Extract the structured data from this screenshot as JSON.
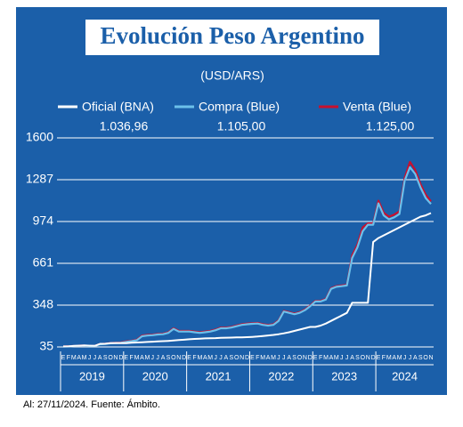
{
  "chart_data": {
    "type": "line",
    "title": "Evolución Peso Argentino",
    "subtitle": "(USD/ARS)",
    "footer": "Al: 27/11/2024. Fuente: Ámbito.",
    "categories": [
      "E",
      "F",
      "M",
      "A",
      "M",
      "J",
      "J",
      "A",
      "S",
      "O",
      "N",
      "D",
      "E",
      "F",
      "M",
      "A",
      "M",
      "J",
      "J",
      "A",
      "S",
      "O",
      "N",
      "D",
      "E",
      "F",
      "M",
      "A",
      "M",
      "J",
      "J",
      "A",
      "S",
      "O",
      "N",
      "D",
      "E",
      "F",
      "M",
      "A",
      "M",
      "J",
      "J",
      "A",
      "S",
      "O",
      "N",
      "D",
      "E",
      "F",
      "M",
      "A",
      "M",
      "J",
      "J",
      "A",
      "S",
      "O",
      "N",
      "D",
      "E",
      "F",
      "M",
      "A",
      "M",
      "J",
      "J",
      "A",
      "S",
      "O",
      "N"
    ],
    "years": [
      "2019",
      "2020",
      "2021",
      "2022",
      "2023",
      "2024"
    ],
    "ylim": [
      35,
      1600
    ],
    "yticks": [
      35,
      348,
      661,
      974,
      1287,
      1600
    ],
    "grid": true,
    "series": [
      {
        "name": "Oficial (BNA)",
        "color": "#ffffff",
        "last_value_label": "1.036,96",
        "values": [
          39,
          39,
          42,
          44,
          46,
          44,
          43,
          58,
          59,
          63,
          63,
          63,
          63,
          66,
          68,
          70,
          72,
          74,
          76,
          78,
          80,
          83,
          86,
          89,
          92,
          95,
          97,
          99,
          100,
          101,
          103,
          104,
          105,
          106,
          107,
          108,
          110,
          113,
          117,
          121,
          125,
          130,
          137,
          145,
          155,
          165,
          175,
          185,
          185,
          195,
          210,
          230,
          250,
          270,
          290,
          365,
          365,
          365,
          365,
          820,
          850,
          870,
          890,
          910,
          930,
          950,
          970,
          990,
          1010,
          1020,
          1036.96
        ]
      },
      {
        "name": "Compra (Blue)",
        "color": "#6cc0ea",
        "last_value_label": "1.105,00",
        "values": [
          37,
          39,
          42,
          44,
          44,
          42,
          42,
          55,
          57,
          62,
          65,
          66,
          73,
          78,
          85,
          115,
          120,
          123,
          128,
          130,
          140,
          170,
          150,
          150,
          150,
          145,
          140,
          145,
          150,
          160,
          175,
          175,
          180,
          190,
          200,
          205,
          208,
          210,
          200,
          195,
          200,
          230,
          300,
          290,
          280,
          290,
          310,
          340,
          375,
          375,
          390,
          470,
          485,
          490,
          495,
          700,
          780,
          900,
          950,
          950,
          1110,
          1020,
          990,
          1005,
          1030,
          1280,
          1380,
          1330,
          1230,
          1150,
          1105
        ]
      },
      {
        "name": "Venta (Blue)",
        "color": "#c8102e",
        "last_value_label": "1.125,00",
        "values": [
          38,
          40,
          43,
          45,
          45,
          43,
          43,
          57,
          59,
          64,
          67,
          68,
          77,
          81,
          89,
          120,
          125,
          127,
          132,
          134,
          145,
          175,
          155,
          155,
          155,
          150,
          145,
          150,
          155,
          165,
          180,
          180,
          185,
          195,
          205,
          210,
          212,
          215,
          205,
          200,
          205,
          235,
          305,
          295,
          285,
          295,
          315,
          345,
          380,
          380,
          395,
          475,
          490,
          495,
          500,
          720,
          800,
          930,
          960,
          960,
          1130,
          1040,
          1010,
          1025,
          1050,
          1300,
          1420,
          1360,
          1255,
          1175,
          1125
        ]
      }
    ]
  }
}
